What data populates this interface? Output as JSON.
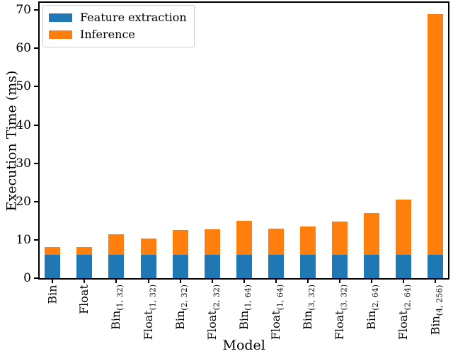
{
  "figure": {
    "background": "#ffffff",
    "axis_color": "#000000",
    "text_color": "#000000"
  },
  "chart_data": {
    "type": "bar",
    "stacked": true,
    "title": "",
    "xlabel": "Model",
    "ylabel": "Execution Time (ms)",
    "ylim": [
      0,
      71.9
    ],
    "yticks": [
      0,
      10,
      20,
      30,
      40,
      50,
      60,
      70
    ],
    "grid": false,
    "legend_position": "upper left",
    "x_tick_rotation_deg": 90,
    "categories": [
      {
        "main": "Bin",
        "sub": ""
      },
      {
        "main": "Float",
        "sub": ""
      },
      {
        "main": "Bin",
        "sub": "(1, 32)"
      },
      {
        "main": "Float",
        "sub": "(1, 32)"
      },
      {
        "main": "Bin",
        "sub": "(2, 32)"
      },
      {
        "main": "Float",
        "sub": "(2, 32)"
      },
      {
        "main": "Bin",
        "sub": "(1, 64)"
      },
      {
        "main": "Float",
        "sub": "(1, 64)"
      },
      {
        "main": "Bin",
        "sub": "(3, 32)"
      },
      {
        "main": "Float",
        "sub": "(3, 32)"
      },
      {
        "main": "Bin",
        "sub": "(2, 64)"
      },
      {
        "main": "Float",
        "sub": "(2, 64)"
      },
      {
        "main": "Bin",
        "sub": "(4, 256)"
      }
    ],
    "series": [
      {
        "name": "Feature extraction",
        "color": "#1f77b4",
        "values": [
          6.1,
          6.1,
          6.1,
          6.1,
          6.1,
          6.1,
          6.1,
          6.1,
          6.1,
          6.1,
          6.1,
          6.1,
          6.1
        ]
      },
      {
        "name": "Inference",
        "color": "#ff7f0e",
        "values": [
          2.1,
          2.0,
          5.3,
          4.2,
          6.4,
          6.6,
          8.8,
          6.8,
          7.4,
          8.7,
          10.9,
          14.5,
          62.9
        ]
      }
    ],
    "stacked_totals": [
      8.2,
      8.1,
      11.4,
      10.3,
      12.5,
      12.7,
      14.9,
      12.9,
      13.5,
      14.8,
      17.0,
      20.6,
      69.0
    ]
  }
}
